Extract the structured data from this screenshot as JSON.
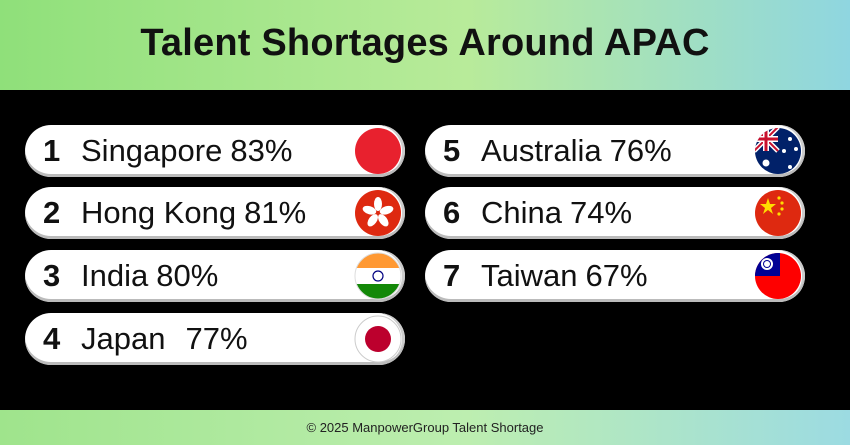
{
  "title": "Talent Shortages Around APAC",
  "items": [
    {
      "rank": "1",
      "country": "Singapore",
      "percent": "83%"
    },
    {
      "rank": "2",
      "country": "Hong Kong",
      "percent": "81%"
    },
    {
      "rank": "3",
      "country": "India",
      "percent": "80%"
    },
    {
      "rank": "4",
      "country": "Japan",
      "percent": "77%"
    },
    {
      "rank": "5",
      "country": "Australia",
      "percent": "76%"
    },
    {
      "rank": "6",
      "country": "China",
      "percent": "74%"
    },
    {
      "rank": "7",
      "country": "Taiwan",
      "percent": "67%"
    }
  ],
  "footer": "© 2025 ManpowerGroup Talent Shortage"
}
